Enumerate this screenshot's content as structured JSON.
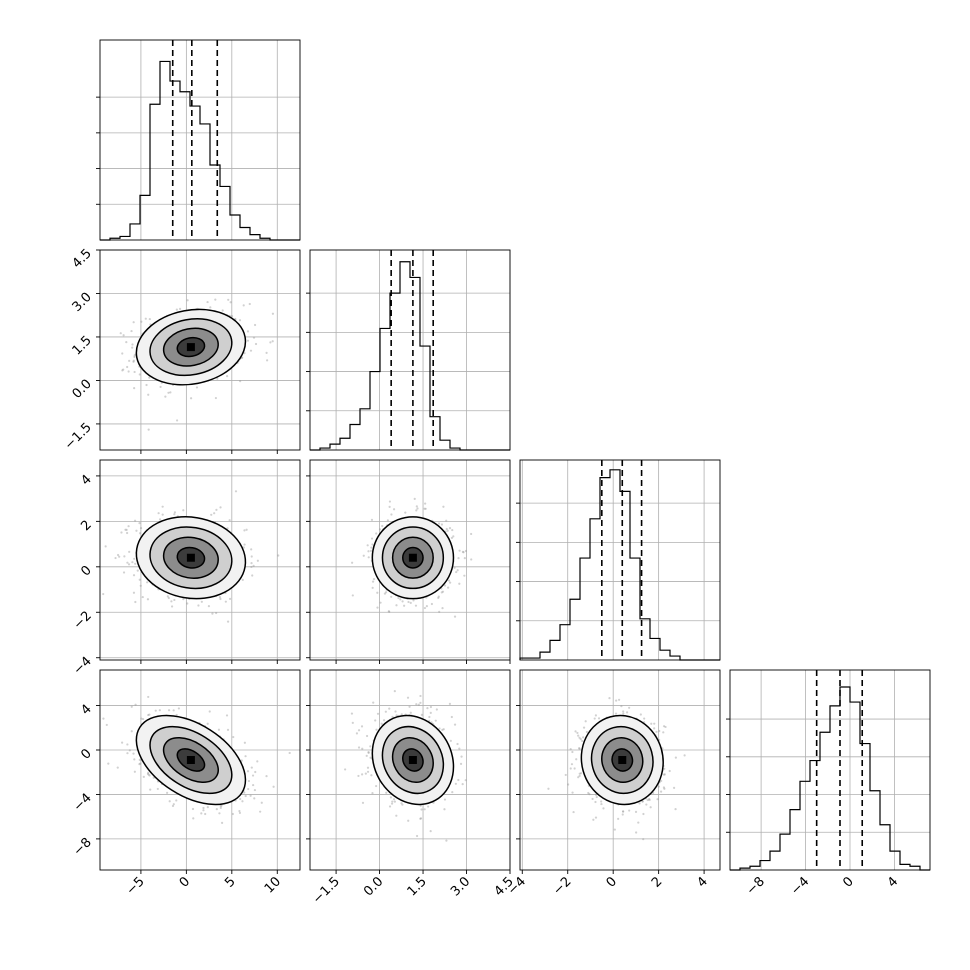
{
  "chart_data": {
    "type": "corner",
    "n_params": 4,
    "params": [
      {
        "range": [
          -9.5,
          12.5
        ],
        "ticks": [
          -5,
          0,
          5,
          10
        ],
        "tick_labels": [
          "−5",
          "0",
          "5",
          "10"
        ],
        "quantiles": [
          -1.5,
          0.6,
          3.4
        ],
        "hist": {
          "edges": [
            -9.5,
            -8.4,
            -7.3,
            -6.2,
            -5.1,
            -4.0,
            -2.9,
            -1.8,
            -0.7,
            0.4,
            1.5,
            2.6,
            3.7,
            4.8,
            5.9,
            7.0,
            8.1,
            9.2,
            10.3,
            11.4,
            12.5
          ],
          "counts": [
            0,
            1,
            2,
            9,
            25,
            76,
            100,
            89,
            83,
            75,
            65,
            42,
            30,
            14,
            7,
            3,
            1,
            0,
            0,
            0
          ]
        },
        "hist_max": 112
      },
      {
        "range": [
          -2.4,
          4.5
        ],
        "ticks": [
          -1.5,
          0.0,
          1.5,
          3.0,
          4.5
        ],
        "tick_labels": [
          "−1.5",
          "0.0",
          "1.5",
          "3.0",
          "4.5"
        ],
        "quantiles": [
          0.4,
          1.15,
          1.85
        ],
        "hist": {
          "edges": [
            -2.4,
            -2.055,
            -1.71,
            -1.365,
            -1.02,
            -0.675,
            -0.33,
            0.015,
            0.36,
            0.705,
            1.05,
            1.395,
            1.74,
            2.085,
            2.43,
            2.775,
            3.12,
            3.465,
            3.81,
            4.155,
            4.5
          ],
          "counts": [
            0,
            1,
            3,
            6,
            13,
            21,
            40,
            62,
            80,
            96,
            88,
            53,
            17,
            5,
            1,
            0,
            0,
            0,
            0,
            0
          ]
        },
        "hist_max": 102
      },
      {
        "range": [
          -4.1,
          4.7
        ],
        "ticks": [
          -4,
          -2,
          0,
          2,
          4
        ],
        "tick_labels": [
          "−4",
          "−2",
          "0",
          "2",
          "4"
        ],
        "quantiles": [
          -0.5,
          0.4,
          1.25
        ],
        "hist": {
          "edges": [
            -4.1,
            -3.66,
            -3.22,
            -2.78,
            -2.34,
            -1.9,
            -1.46,
            -1.02,
            -0.58,
            -0.14,
            0.3,
            0.74,
            1.18,
            1.62,
            2.06,
            2.5,
            2.94,
            3.38,
            3.82,
            4.26,
            4.7
          ],
          "counts": [
            1,
            1,
            4,
            10,
            18,
            31,
            52,
            72,
            93,
            97,
            86,
            52,
            21,
            11,
            5,
            2,
            0,
            0,
            0,
            0
          ]
        },
        "hist_max": 102
      },
      {
        "range": [
          -10.8,
          7.2
        ],
        "ticks": [
          -8,
          -4,
          0,
          4
        ],
        "tick_labels": [
          "−8",
          "−4",
          "0",
          "4"
        ],
        "quantiles": [
          -3.0,
          -0.9,
          1.1
        ],
        "hist": {
          "edges": [
            -10.8,
            -9.9,
            -9.0,
            -8.1,
            -7.2,
            -6.3,
            -5.4,
            -4.5,
            -3.6,
            -2.7,
            -1.8,
            -0.9,
            0.0,
            0.9,
            1.8,
            2.7,
            3.6,
            4.5,
            5.4,
            6.3,
            7.2
          ],
          "counts": [
            0,
            1,
            2,
            5,
            10,
            19,
            32,
            47,
            58,
            73,
            87,
            97,
            89,
            67,
            42,
            24,
            10,
            3,
            2,
            0
          ]
        },
        "hist_max": 106
      }
    ],
    "pairs": [
      {
        "row": 1,
        "col": 0,
        "center": [
          0.5,
          1.15
        ],
        "sigma": [
          3.0,
          0.65
        ],
        "rho": 0.15
      },
      {
        "row": 2,
        "col": 0,
        "center": [
          0.5,
          0.4
        ],
        "sigma": [
          3.0,
          0.9
        ],
        "rho": -0.1
      },
      {
        "row": 2,
        "col": 1,
        "center": [
          1.15,
          0.4
        ],
        "sigma": [
          0.7,
          0.9
        ],
        "rho": 0.0
      },
      {
        "row": 3,
        "col": 0,
        "center": [
          0.5,
          -0.9
        ],
        "sigma": [
          3.0,
          2.0
        ],
        "rho": -0.45
      },
      {
        "row": 3,
        "col": 1,
        "center": [
          1.15,
          -0.9
        ],
        "sigma": [
          0.7,
          2.0
        ],
        "rho": -0.15
      },
      {
        "row": 3,
        "col": 2,
        "center": [
          0.4,
          -0.9
        ],
        "sigma": [
          0.9,
          2.0
        ],
        "rho": -0.05
      }
    ],
    "contour_levels": [
      "0.5σ",
      "1σ",
      "1.5σ",
      "2σ"
    ],
    "grid": true,
    "xlabel": "",
    "ylabel": ""
  }
}
